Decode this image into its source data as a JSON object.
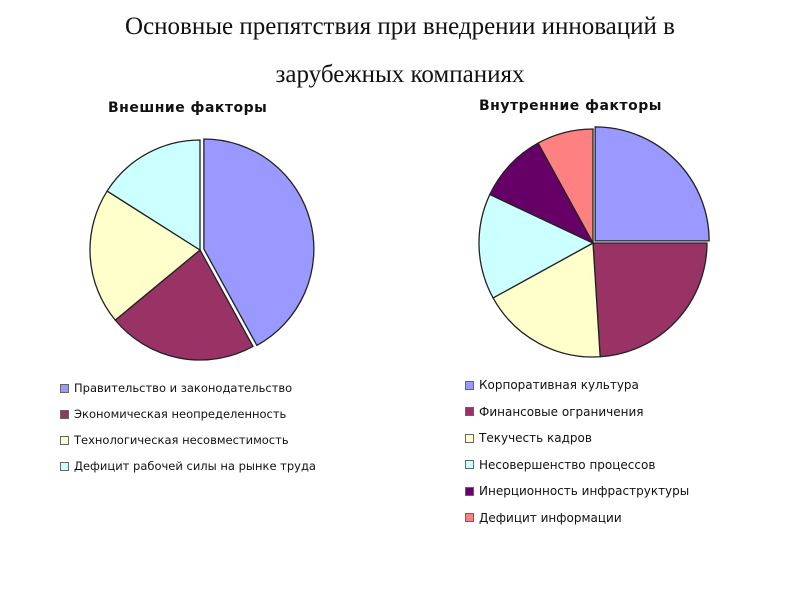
{
  "title": {
    "line1": "Основные препятствия при внедрении инноваций в",
    "line2": "зарубежных компаниях"
  },
  "chart_data": [
    {
      "type": "pie",
      "title": "Внешние  факторы",
      "legend_placement": "bottom",
      "slices": [
        {
          "label": "Правительство и законодательство",
          "value": 42,
          "color": "#9999ff"
        },
        {
          "label": "Экономическая неопределенность",
          "value": 22,
          "color": "#993366"
        },
        {
          "label": "Технологическая несовместимость",
          "value": 20,
          "color": "#ffffcc"
        },
        {
          "label": "Дефицит рабочей силы на рынке труда",
          "value": 16,
          "color": "#ccffff"
        }
      ]
    },
    {
      "type": "pie",
      "title": "Внутренние факторы",
      "legend_placement": "bottom",
      "slices": [
        {
          "label": "Корпоративная культура",
          "value": 25,
          "color": "#9999ff"
        },
        {
          "label": "Финансовые ограничения",
          "value": 24,
          "color": "#993366"
        },
        {
          "label": "Текучесть кадров",
          "value": 18,
          "color": "#ffffcc"
        },
        {
          "label": "Несовершенство процессов",
          "value": 15,
          "color": "#ccffff"
        },
        {
          "label": "Инерционность инфраструктуры",
          "value": 10,
          "color": "#660066"
        },
        {
          "label": "Дефицит информации",
          "value": 8,
          "color": "#ff8080"
        }
      ]
    }
  ]
}
